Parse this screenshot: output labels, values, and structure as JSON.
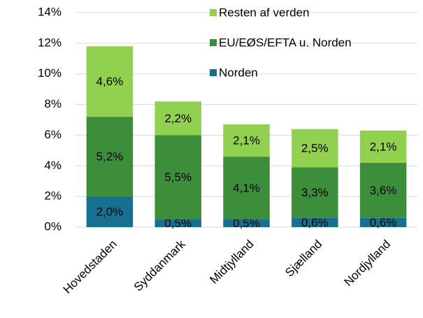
{
  "chart_data": {
    "type": "stacked_bar",
    "categories": [
      "Hovedstaden",
      "Syddanmark",
      "Midtjylland",
      "Sjælland",
      "Nordjylland"
    ],
    "series": [
      {
        "name": "Norden",
        "color": "#17708f",
        "values": [
          2.0,
          0.5,
          0.5,
          0.6,
          0.6
        ],
        "value_labels": [
          "2,0%",
          "0,5%",
          "0,5%",
          "0,6%",
          "0,6%"
        ]
      },
      {
        "name": "EU/EØS/EFTA u. Norden",
        "color": "#3c8e3a",
        "values": [
          5.2,
          5.5,
          4.1,
          3.3,
          3.6
        ],
        "value_labels": [
          "5,2%",
          "5,5%",
          "4,1%",
          "3,3%",
          "3,6%"
        ]
      },
      {
        "name": "Resten af verden",
        "color": "#92d050",
        "values": [
          4.6,
          2.2,
          2.1,
          2.5,
          2.1
        ],
        "value_labels": [
          "4,6%",
          "2,2%",
          "2,1%",
          "2,5%",
          "2,1%"
        ]
      }
    ],
    "ylim": [
      0,
      14
    ],
    "yticks": [
      {
        "value": 0,
        "label": "0%"
      },
      {
        "value": 2,
        "label": "2%"
      },
      {
        "value": 4,
        "label": "4%"
      },
      {
        "value": 6,
        "label": "6%"
      },
      {
        "value": 8,
        "label": "8%"
      },
      {
        "value": 10,
        "label": "10%"
      },
      {
        "value": 12,
        "label": "12%"
      },
      {
        "value": 14,
        "label": "14%"
      }
    ],
    "grid": true,
    "legend": "top-right"
  }
}
